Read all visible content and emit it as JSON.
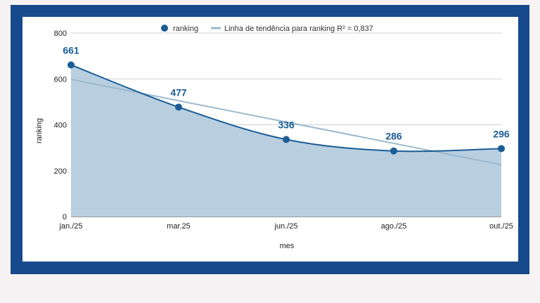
{
  "chart_data": {
    "type": "area",
    "categories": [
      "jan./25",
      "mar.25",
      "jun./25",
      "ago./25",
      "out./25"
    ],
    "series": [
      {
        "name": "ranking",
        "values": [
          661,
          477,
          336,
          286,
          296
        ],
        "color": "#1a5d97",
        "fill": "#b9cfe0"
      }
    ],
    "trendline": {
      "label": "Linha de tendência para ranking R² = 0,837",
      "start": 598,
      "end": 226,
      "color": "#9bb9d0"
    },
    "data_labels": [
      "661",
      "477",
      "336",
      "286",
      "296"
    ],
    "xlabel": "mes",
    "ylabel": "ranking",
    "ylim": [
      0,
      800
    ],
    "yticks": [
      "0",
      "200",
      "400",
      "600",
      "800"
    ],
    "grid": true,
    "legend_position": "top-center"
  }
}
